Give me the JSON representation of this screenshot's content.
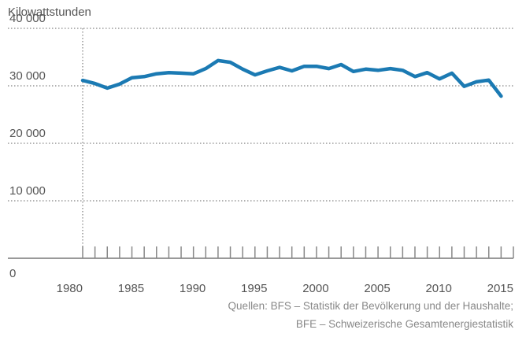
{
  "chart_data": {
    "type": "line",
    "y_axis_label": "Kilowattstunden",
    "x": [
      1980,
      1981,
      1982,
      1983,
      1984,
      1985,
      1986,
      1987,
      1988,
      1989,
      1990,
      1991,
      1992,
      1993,
      1994,
      1995,
      1996,
      1997,
      1998,
      1999,
      2000,
      2001,
      2002,
      2003,
      2004,
      2005,
      2006,
      2007,
      2008,
      2009,
      2010,
      2011,
      2012,
      2013,
      2014
    ],
    "series": [
      {
        "name": "Kilowattstunden",
        "color": "#1b7ab3",
        "values": [
          30950,
          30400,
          29600,
          30300,
          31400,
          31600,
          32100,
          32300,
          32200,
          32100,
          33000,
          34400,
          34100,
          32900,
          31900,
          32600,
          33200,
          32600,
          33400,
          33400,
          33000,
          33700,
          32500,
          32900,
          32700,
          33000,
          32700,
          31600,
          32300,
          31200,
          32200,
          29900,
          30700,
          31000,
          28200
        ]
      }
    ],
    "xlim": [
      1980,
      2015
    ],
    "xticks": [
      1980,
      1985,
      1990,
      1995,
      2000,
      2005,
      2010,
      2015
    ],
    "xminorticks": [
      1980,
      1981,
      1982,
      1983,
      1984,
      1985,
      1986,
      1987,
      1988,
      1989,
      1990,
      1991,
      1992,
      1993,
      1994,
      1995,
      1996,
      1997,
      1998,
      1999,
      2000,
      2001,
      2002,
      2003,
      2004,
      2005,
      2006,
      2007,
      2008,
      2009,
      2010,
      2011,
      2012,
      2013,
      2014,
      2015
    ],
    "ylim": [
      0,
      40000
    ],
    "yticks": [
      0,
      {
        "value": 10000,
        "label": "10 000"
      },
      {
        "value": 20000,
        "label": "20 000"
      },
      {
        "value": 30000,
        "label": "30 000"
      },
      {
        "value": 40000,
        "label": "40 000"
      }
    ],
    "grid": true,
    "source": [
      "Quellen: BFS – Statistik der Bevölkerung und der Haushalte;",
      "BFE – Schweizerische Gesamtenergiestatistik"
    ]
  }
}
